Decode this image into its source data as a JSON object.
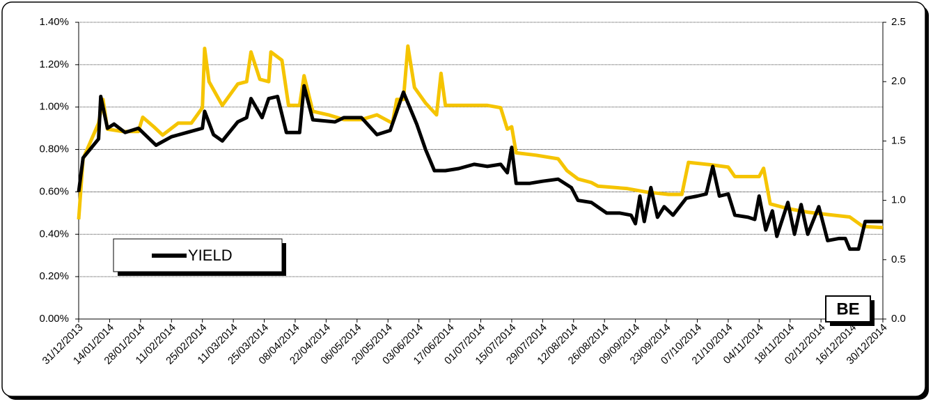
{
  "chart_data": {
    "type": "line",
    "annotation": "BE",
    "xlim": [
      "31/12/2013",
      "30/12/2014"
    ],
    "xticks": [
      "31/12/2013",
      "14/01/2014",
      "28/01/2014",
      "11/02/2014",
      "25/02/2014",
      "11/03/2014",
      "25/03/2014",
      "08/04/2014",
      "22/04/2014",
      "06/05/2014",
      "20/05/2014",
      "03/06/2014",
      "17/06/2014",
      "01/07/2014",
      "15/07/2014",
      "29/07/2014",
      "12/08/2014",
      "26/08/2014",
      "09/09/2014",
      "23/09/2014",
      "07/10/2014",
      "21/10/2014",
      "04/11/2014",
      "18/11/2014",
      "02/12/2014",
      "16/12/2014",
      "30/12/2014"
    ],
    "ylim": [
      0,
      1.4
    ],
    "yticks": [
      {
        "value": 0,
        "label": "0.00%"
      },
      {
        "value": 0.2,
        "label": "0.20%"
      },
      {
        "value": 0.4,
        "label": "0.40%"
      },
      {
        "value": 0.6,
        "label": "0.60%"
      },
      {
        "value": 0.8,
        "label": "0.80%"
      },
      {
        "value": 1.0,
        "label": "1.00%"
      },
      {
        "value": 1.2,
        "label": "1.20%"
      },
      {
        "value": 1.4,
        "label": "1.40%"
      }
    ],
    "y2lim": [
      0,
      2.5
    ],
    "y2ticks": [
      {
        "value": 0,
        "label": "0.0"
      },
      0.5,
      {
        "value": 1.0,
        "label": "1.0"
      },
      1.5,
      {
        "value": 2.0,
        "label": "2.0"
      },
      2.5
    ],
    "grid": true,
    "series": [
      {
        "name": "YIELD",
        "color": "#000000",
        "axis": "y",
        "x": [
          "31/12/2013",
          "02/01/2014",
          "09/01/2014",
          "10/01/2014",
          "13/01/2014",
          "16/01/2014",
          "21/01/2014",
          "27/01/2014",
          "04/02/2014",
          "11/02/2014",
          "18/02/2014",
          "25/02/2014",
          "26/02/2014",
          "02/03/2014",
          "06/03/2014",
          "13/03/2014",
          "17/03/2014",
          "19/03/2014",
          "24/03/2014",
          "27/03/2014",
          "31/03/2014",
          "04/04/2014",
          "10/04/2014",
          "12/04/2014",
          "16/04/2014",
          "26/04/2014",
          "30/04/2014",
          "08/05/2014",
          "15/05/2014",
          "21/05/2014",
          "27/05/2014",
          "02/06/2014",
          "06/06/2014",
          "10/06/2014",
          "15/06/2014",
          "21/06/2014",
          "28/06/2014",
          "04/07/2014",
          "10/07/2014",
          "13/07/2014",
          "15/07/2014",
          "17/07/2014",
          "23/07/2014",
          "29/07/2014",
          "05/08/2014",
          "11/08/2014",
          "14/08/2014",
          "20/08/2014",
          "27/08/2014",
          "02/09/2014",
          "07/09/2014",
          "09/09/2014",
          "11/09/2014",
          "13/09/2014",
          "16/09/2014",
          "19/09/2014",
          "22/09/2014",
          "26/09/2014",
          "02/10/2014",
          "07/10/2014",
          "11/10/2014",
          "14/10/2014",
          "17/10/2014",
          "21/10/2014",
          "24/10/2014",
          "30/10/2014",
          "02/11/2014",
          "04/11/2014",
          "07/11/2014",
          "10/11/2014",
          "12/11/2014",
          "17/11/2014",
          "20/11/2014",
          "23/11/2014",
          "26/11/2014",
          "01/12/2014",
          "05/12/2014",
          "10/12/2014",
          "13/12/2014",
          "15/12/2014",
          "19/12/2014",
          "22/12/2014",
          "30/12/2014"
        ],
        "values": [
          0.6,
          0.76,
          0.85,
          1.05,
          0.9,
          0.92,
          0.88,
          0.9,
          0.82,
          0.86,
          0.88,
          0.9,
          0.98,
          0.87,
          0.84,
          0.93,
          0.95,
          1.04,
          0.95,
          1.04,
          1.05,
          0.88,
          0.88,
          1.1,
          0.94,
          0.93,
          0.95,
          0.95,
          0.87,
          0.89,
          1.07,
          0.92,
          0.8,
          0.7,
          0.7,
          0.71,
          0.73,
          0.72,
          0.73,
          0.69,
          0.81,
          0.64,
          0.64,
          0.65,
          0.66,
          0.62,
          0.56,
          0.55,
          0.5,
          0.5,
          0.49,
          0.45,
          0.58,
          0.46,
          0.62,
          0.48,
          0.53,
          0.49,
          0.57,
          0.58,
          0.59,
          0.72,
          0.58,
          0.59,
          0.49,
          0.48,
          0.47,
          0.58,
          0.42,
          0.51,
          0.39,
          0.55,
          0.4,
          0.54,
          0.4,
          0.53,
          0.37,
          0.38,
          0.38,
          0.33,
          0.33,
          0.46,
          0.46
        ]
      },
      {
        "color": "#f5c400",
        "axis": "y2",
        "x": [
          "31/12/2013",
          "02/01/2014",
          "09/01/2014",
          "11/01/2014",
          "13/01/2014",
          "20/01/2014",
          "27/01/2014",
          "29/01/2014",
          "03/02/2014",
          "07/02/2014",
          "14/02/2014",
          "20/02/2014",
          "25/02/2014",
          "26/02/2014",
          "28/02/2014",
          "06/03/2014",
          "13/03/2014",
          "17/03/2014",
          "19/03/2014",
          "23/03/2014",
          "27/03/2014",
          "28/03/2014",
          "02/04/2014",
          "05/04/2014",
          "10/04/2014",
          "12/04/2014",
          "16/04/2014",
          "23/04/2014",
          "30/04/2014",
          "08/05/2014",
          "15/05/2014",
          "22/05/2014",
          "24/05/2014",
          "27/05/2014",
          "29/05/2014",
          "01/06/2014",
          "06/06/2014",
          "11/06/2014",
          "13/06/2014",
          "15/06/2014",
          "18/06/2014",
          "28/06/2014",
          "04/07/2014",
          "10/07/2014",
          "13/07/2014",
          "15/07/2014",
          "17/07/2014",
          "26/07/2014",
          "05/08/2014",
          "09/08/2014",
          "14/08/2014",
          "20/08/2014",
          "23/08/2014",
          "05/09/2014",
          "14/09/2014",
          "24/09/2014",
          "30/09/2014",
          "03/10/2014",
          "13/10/2014",
          "21/10/2014",
          "24/10/2014",
          "01/11/2014",
          "04/11/2014",
          "06/11/2014",
          "09/11/2014",
          "17/11/2014",
          "26/11/2014",
          "05/12/2014",
          "15/12/2014",
          "21/12/2014",
          "30/12/2014"
        ],
        "values": [
          0.84,
          1.35,
          1.65,
          1.85,
          1.6,
          1.58,
          1.58,
          1.7,
          1.62,
          1.55,
          1.65,
          1.65,
          1.78,
          2.28,
          2.0,
          1.8,
          1.98,
          2.0,
          2.25,
          2.02,
          2.0,
          2.25,
          2.18,
          1.8,
          1.8,
          2.05,
          1.75,
          1.72,
          1.68,
          1.68,
          1.72,
          1.65,
          1.85,
          1.85,
          2.3,
          1.95,
          1.82,
          1.72,
          2.07,
          1.8,
          1.8,
          1.8,
          1.8,
          1.78,
          1.6,
          1.62,
          1.4,
          1.38,
          1.35,
          1.25,
          1.18,
          1.15,
          1.12,
          1.1,
          1.07,
          1.05,
          1.05,
          1.32,
          1.3,
          1.28,
          1.2,
          1.2,
          1.2,
          1.27,
          0.97,
          0.93,
          0.9,
          0.88,
          0.86,
          0.78,
          0.77
        ]
      }
    ]
  }
}
